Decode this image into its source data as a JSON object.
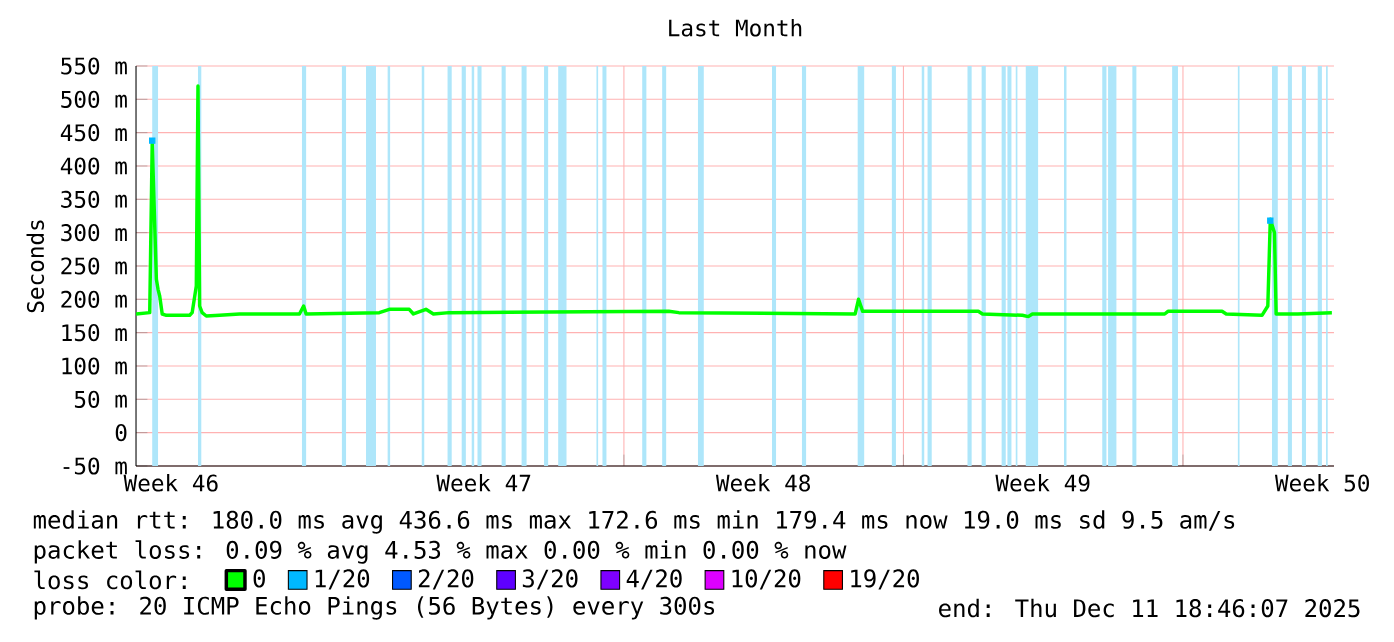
{
  "chart_data": {
    "type": "line",
    "title": "Last Month",
    "ylabel": "Seconds",
    "xlim": [
      "2025-11-11T18:46",
      "2025-12-11T18:46"
    ],
    "ylim": [
      -50,
      550
    ],
    "xticks": [
      {
        "value": "2025-11-17",
        "label": null
      },
      {
        "value": "2025-11-24",
        "label": null
      },
      {
        "value": "2025-12-01",
        "label": null
      },
      {
        "value": "2025-12-08",
        "label": null
      },
      {
        "value": "2025-11-12T16:00",
        "label": "Week 46"
      },
      {
        "value": "2025-11-20T12:00",
        "label": "Week 47"
      },
      {
        "value": "2025-11-27T12:00",
        "label": "Week 48"
      },
      {
        "value": "2025-12-04T12:00",
        "label": "Week 49"
      },
      {
        "value": "2025-12-11T12:00",
        "label": "Week 50"
      }
    ],
    "yticks": [
      {
        "value": -50,
        "label": "-50 m"
      },
      0,
      {
        "value": 50,
        "label": "50 m"
      },
      {
        "value": 100,
        "label": "100 m"
      },
      {
        "value": 150,
        "label": "150 m"
      },
      {
        "value": 200,
        "label": "200 m"
      },
      {
        "value": 250,
        "label": "250 m"
      },
      {
        "value": 300,
        "label": "300 m"
      },
      {
        "value": 350,
        "label": "350 m"
      },
      {
        "value": 400,
        "label": "400 m"
      },
      {
        "value": 450,
        "label": "450 m"
      },
      {
        "value": 500,
        "label": "500 m"
      },
      {
        "value": 550,
        "label": "550 m"
      }
    ],
    "grid": true,
    "legend": "bottom",
    "legend_title": "loss color:",
    "series": [
      {
        "name": "0",
        "color": "#00ff00",
        "x": [
          "2025-11-11T18:46",
          "2025-11-12T03:00",
          "2025-11-12T04:30",
          "2025-11-12T07:00",
          "2025-11-12T08:00",
          "2025-11-12T09:00",
          "2025-11-12T10:30",
          "2025-11-12T13:00",
          "2025-11-13T03:00",
          "2025-11-13T04:30",
          "2025-11-13T07:00",
          "2025-11-13T08:00",
          "2025-11-13T09:00",
          "2025-11-13T10:30",
          "2025-11-13T13:00",
          "2025-11-13T21:00",
          "2025-11-14T09:00",
          "2025-11-15T21:00",
          "2025-11-15T23:30",
          "2025-11-16T01:00",
          "2025-11-17T21:00",
          "2025-11-18T03:00",
          "2025-11-18T15:00",
          "2025-11-18T17:30",
          "2025-11-19T01:00",
          "2025-11-19T05:30",
          "2025-11-19T15:00",
          "2025-11-25T03:00",
          "2025-11-25T09:00",
          "2025-11-29T19:00",
          "2025-11-29T21:00",
          "2025-11-29T23:30",
          "2025-12-02T21:00",
          "2025-12-02T23:30",
          "2025-12-03T23:30",
          "2025-12-04T03:00",
          "2025-12-04T05:30",
          "2025-12-07T13:00",
          "2025-12-07T15:00",
          "2025-12-08T23:30",
          "2025-12-09T02:00",
          "2025-12-09T23:30",
          "2025-12-10T03:00",
          "2025-12-10T04:30",
          "2025-12-10T07:00",
          "2025-12-10T08:00",
          "2025-12-10T21:00",
          "2025-12-11T17:30"
        ],
        "values": [
          178,
          180,
          435,
          230,
          215,
          205,
          178,
          176,
          176,
          180,
          220,
          520,
          190,
          180,
          175,
          176,
          178,
          178,
          190,
          178,
          180,
          185,
          185,
          178,
          185,
          178,
          180,
          182,
          180,
          178,
          200,
          182,
          182,
          178,
          176,
          174,
          178,
          178,
          182,
          182,
          178,
          176,
          190,
          320,
          300,
          178,
          178,
          180
        ]
      },
      {
        "name": "1/20",
        "color": "#00b8ff",
        "type": "scatter",
        "x": [
          "2025-11-12T04:30",
          "2025-12-10T04:30"
        ],
        "values": [
          438,
          318
        ]
      },
      {
        "name": "2/20",
        "color": "#0059ff",
        "type": "scatter"
      },
      {
        "name": "3/20",
        "color": "#5e00ff",
        "type": "scatter"
      },
      {
        "name": "4/20",
        "color": "#7e00ff",
        "type": "scatter"
      },
      {
        "name": "10/20",
        "color": "#dd00ff",
        "type": "scatter"
      },
      {
        "name": "19/20",
        "color": "#ff0000",
        "type": "scatter"
      }
    ],
    "bands": [
      {
        "axis": "x",
        "from": "2025-11-12T04:30",
        "to": "2025-11-12T08:00",
        "color": "#aee6fa"
      },
      {
        "axis": "x",
        "from": "2025-11-13T08:00",
        "to": "2025-11-13T10:00",
        "color": "#aee6fa"
      },
      {
        "axis": "x",
        "from": "2025-11-15T22:30",
        "to": "2025-11-16T01:00",
        "color": "#aee6fa"
      },
      {
        "axis": "x",
        "from": "2025-11-16T22:30",
        "to": "2025-11-17T01:00",
        "color": "#aee6fa"
      },
      {
        "axis": "x",
        "from": "2025-11-17T13:00",
        "to": "2025-11-17T19:00",
        "color": "#aee6fa"
      },
      {
        "axis": "x",
        "from": "2025-11-18T02:00",
        "to": "2025-11-18T03:30",
        "color": "#aee6fa"
      },
      {
        "axis": "x",
        "from": "2025-11-18T22:30",
        "to": "2025-11-19T00:00",
        "color": "#aee6fa"
      },
      {
        "axis": "x",
        "from": "2025-11-19T14:00",
        "to": "2025-11-19T16:30",
        "color": "#aee6fa"
      },
      {
        "axis": "x",
        "from": "2025-11-19T22:30",
        "to": "2025-11-20T01:00",
        "color": "#aee6fa"
      },
      {
        "axis": "x",
        "from": "2025-11-20T04:30",
        "to": "2025-11-20T06:00",
        "color": "#aee6fa"
      },
      {
        "axis": "x",
        "from": "2025-11-20T08:00",
        "to": "2025-11-20T10:30",
        "color": "#aee6fa"
      },
      {
        "axis": "x",
        "from": "2025-11-20T22:30",
        "to": "2025-11-21T01:00",
        "color": "#aee6fa"
      },
      {
        "axis": "x",
        "from": "2025-11-21T10:30",
        "to": "2025-11-21T13:30",
        "color": "#aee6fa"
      },
      {
        "axis": "x",
        "from": "2025-11-22T00:00",
        "to": "2025-11-22T02:30",
        "color": "#aee6fa"
      },
      {
        "axis": "x",
        "from": "2025-11-22T08:30",
        "to": "2025-11-22T13:30",
        "color": "#aee6fa"
      },
      {
        "axis": "x",
        "from": "2025-11-23T07:30",
        "to": "2025-11-23T08:30",
        "color": "#aee6fa"
      },
      {
        "axis": "x",
        "from": "2025-11-23T11:00",
        "to": "2025-11-23T13:30",
        "color": "#aee6fa"
      },
      {
        "axis": "x",
        "from": "2025-11-24T11:00",
        "to": "2025-11-24T13:30",
        "color": "#aee6fa"
      },
      {
        "axis": "x",
        "from": "2025-11-24T23:00",
        "to": "2025-11-25T01:30",
        "color": "#aee6fa"
      },
      {
        "axis": "x",
        "from": "2025-11-25T20:30",
        "to": "2025-11-26T00:00",
        "color": "#aee6fa"
      },
      {
        "axis": "x",
        "from": "2025-11-27T17:00",
        "to": "2025-11-27T19:30",
        "color": "#aee6fa"
      },
      {
        "axis": "x",
        "from": "2025-11-28T11:00",
        "to": "2025-11-28T13:30",
        "color": "#aee6fa"
      },
      {
        "axis": "x",
        "from": "2025-11-29T20:30",
        "to": "2025-11-30T00:30",
        "color": "#aee6fa"
      },
      {
        "axis": "x",
        "from": "2025-11-30T17:00",
        "to": "2025-11-30T19:30",
        "color": "#aee6fa"
      },
      {
        "axis": "x",
        "from": "2025-12-01T11:00",
        "to": "2025-12-01T12:30",
        "color": "#aee6fa"
      },
      {
        "axis": "x",
        "from": "2025-12-01T14:30",
        "to": "2025-12-01T17:00",
        "color": "#aee6fa"
      },
      {
        "axis": "x",
        "from": "2025-12-02T14:30",
        "to": "2025-12-02T17:00",
        "color": "#aee6fa"
      },
      {
        "axis": "x",
        "from": "2025-12-02T23:00",
        "to": "2025-12-03T01:30",
        "color": "#aee6fa"
      },
      {
        "axis": "x",
        "from": "2025-12-03T11:00",
        "to": "2025-12-03T13:30",
        "color": "#aee6fa"
      },
      {
        "axis": "x",
        "from": "2025-12-03T14:30",
        "to": "2025-12-03T17:00",
        "color": "#aee6fa"
      },
      {
        "axis": "x",
        "from": "2025-12-03T19:30",
        "to": "2025-12-03T20:30",
        "color": "#aee6fa"
      },
      {
        "axis": "x",
        "from": "2025-12-04T01:30",
        "to": "2025-12-04T09:00",
        "color": "#aee6fa"
      },
      {
        "axis": "x",
        "from": "2025-12-05T00:30",
        "to": "2025-12-05T02:00",
        "color": "#aee6fa"
      },
      {
        "axis": "x",
        "from": "2025-12-05T23:30",
        "to": "2025-12-06T02:00",
        "color": "#aee6fa"
      },
      {
        "axis": "x",
        "from": "2025-12-06T03:00",
        "to": "2025-12-06T08:00",
        "color": "#aee6fa"
      },
      {
        "axis": "x",
        "from": "2025-12-06T17:30",
        "to": "2025-12-06T20:00",
        "color": "#aee6fa"
      },
      {
        "axis": "x",
        "from": "2025-12-07T17:30",
        "to": "2025-12-07T21:00",
        "color": "#aee6fa"
      },
      {
        "axis": "x",
        "from": "2025-12-09T09:00",
        "to": "2025-12-09T10:00",
        "color": "#aee6fa"
      },
      {
        "axis": "x",
        "from": "2025-12-10T05:30",
        "to": "2025-12-10T09:00",
        "color": "#aee6fa"
      },
      {
        "axis": "x",
        "from": "2025-12-10T15:00",
        "to": "2025-12-10T17:30",
        "color": "#aee6fa"
      },
      {
        "axis": "x",
        "from": "2025-12-10T23:30",
        "to": "2025-12-11T02:00",
        "color": "#aee6fa"
      },
      {
        "axis": "x",
        "from": "2025-12-11T09:00",
        "to": "2025-12-11T11:30",
        "color": "#aee6fa"
      },
      {
        "axis": "x",
        "from": "2025-12-11T14:00",
        "to": "2025-12-11T15:00",
        "color": "#aee6fa"
      }
    ],
    "annotations": [
      "median rtt:  180.0 ms avg  436.6 ms max  172.6 ms min  179.4 ms now  19.0 ms sd  9.5   am/s",
      "packet loss: 0.09 % avg  4.53 % max  0.00 % min  0.00 % now",
      "probe:       20 ICMP Echo Pings (56 Bytes) every 300s",
      "end: Thu Dec 11 18:46:07 2025"
    ]
  }
}
